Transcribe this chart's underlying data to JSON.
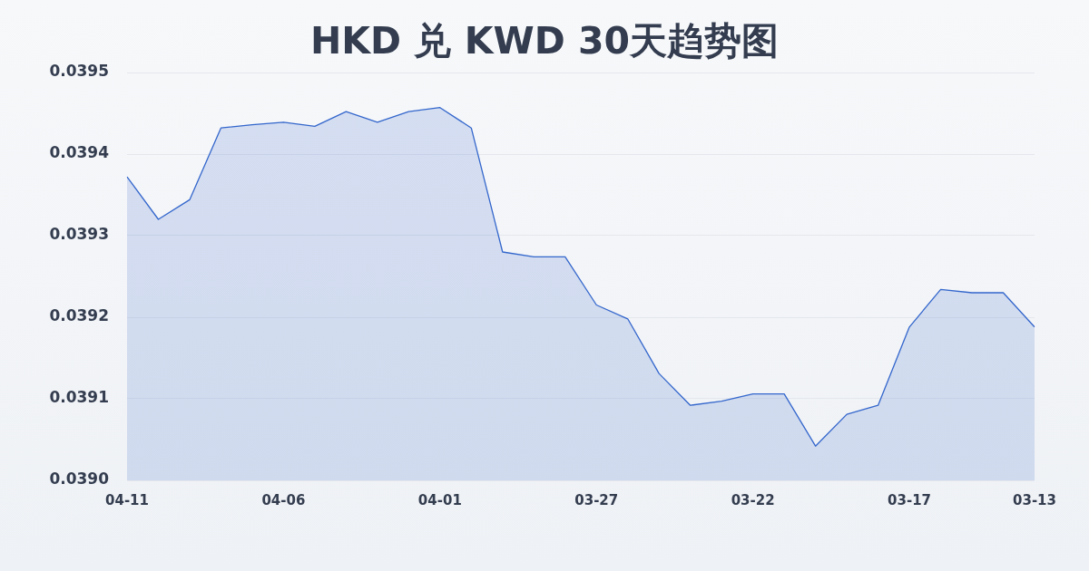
{
  "chart_data": {
    "type": "area",
    "title": "HKD 兑 KWD 30天趋势图",
    "categories": [
      "04-11",
      null,
      null,
      null,
      null,
      "04-06",
      null,
      null,
      null,
      null,
      "04-01",
      null,
      null,
      null,
      null,
      "03-27",
      null,
      null,
      null,
      null,
      "03-22",
      null,
      null,
      null,
      null,
      "03-17",
      null,
      null,
      null,
      "03-13"
    ],
    "series": [
      {
        "color": "#3366cc",
        "values": [
          0.039372,
          0.03932,
          0.039344,
          0.039432,
          0.039436,
          0.039439,
          0.039434,
          0.039452,
          0.039439,
          0.039452,
          0.039457,
          0.039432,
          0.03928,
          0.039274,
          0.039274,
          0.039215,
          0.039198,
          0.039131,
          0.039092,
          0.039097,
          0.039106,
          0.039106,
          0.039042,
          0.039081,
          0.039092,
          0.039188,
          0.039234,
          0.03923,
          0.03923,
          0.039188
        ]
      }
    ],
    "ylim": [
      0.039,
      0.0395
    ],
    "yticks": [
      {
        "value": 0.039,
        "label": "0.0390"
      },
      0.0391,
      0.0392,
      0.0393,
      0.0394,
      0.0395
    ],
    "grid": "y",
    "marker": "none"
  }
}
